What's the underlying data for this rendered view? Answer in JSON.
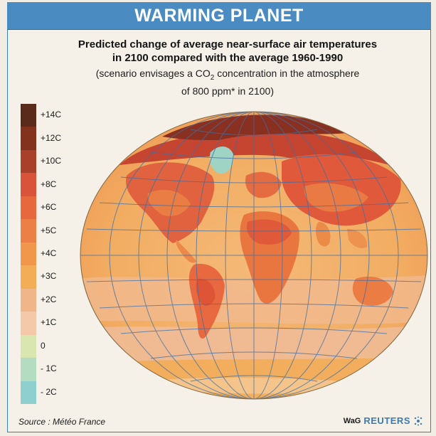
{
  "header": {
    "title": "WARMING PLANET"
  },
  "subtitle": {
    "line1": "Predicted change of average near-surface air temperatures",
    "line2": "in 2100 compared with the average 1960-1990",
    "scenario_before": "(scenario envisages a CO",
    "scenario_sub": "2",
    "scenario_after": " concentration in the atmosphere",
    "scenario_line2": "of 800 ppm* in 2100)"
  },
  "legend": {
    "items": [
      {
        "label": "+14C",
        "color": "#5a2a1a"
      },
      {
        "label": "+12C",
        "color": "#83321e"
      },
      {
        "label": "+10C",
        "color": "#a8402a"
      },
      {
        "label": "+8C",
        "color": "#d9533a"
      },
      {
        "label": "+6C",
        "color": "#e8683e"
      },
      {
        "label": "+5C",
        "color": "#ec7f45"
      },
      {
        "label": "+4C",
        "color": "#f0974b"
      },
      {
        "label": "+3C",
        "color": "#f3ad56"
      },
      {
        "label": "+2C",
        "color": "#f0b68a"
      },
      {
        "label": "+1C",
        "color": "#f3c9a9"
      },
      {
        "label": "0",
        "color": "#d9e6b0"
      },
      {
        "label": "- 1C",
        "color": "#b4dcc0"
      },
      {
        "label": "- 2C",
        "color": "#8fcfd0"
      }
    ]
  },
  "colors": {
    "header_blue": "#4a8bc2",
    "grid_blue": "#3d6fa8",
    "ocean_base": "#f3b06a"
  },
  "source": "Source : Météo France",
  "credit": {
    "prefix": "WaG",
    "brand": "REUTERS"
  }
}
